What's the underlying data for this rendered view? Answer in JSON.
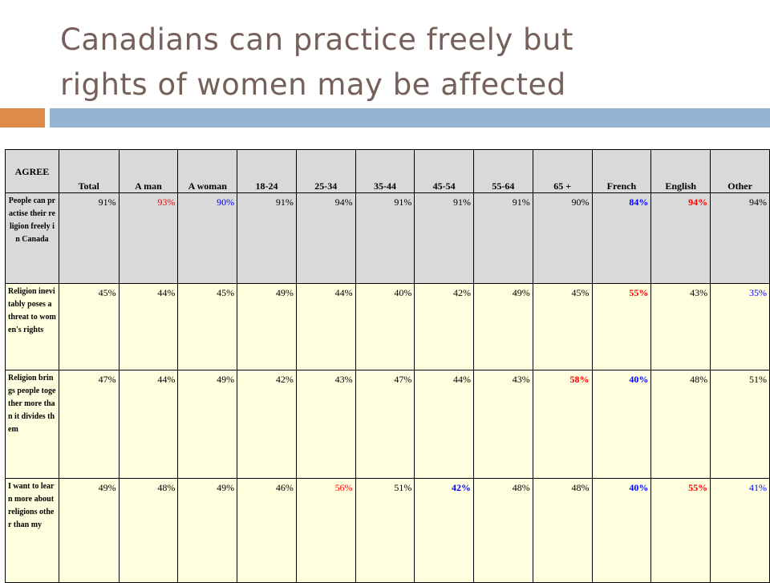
{
  "title": {
    "line1": "Canadians can practice freely but",
    "line2": "rights of women may be affected"
  },
  "colors": {
    "title": "#76605a",
    "accent_orange": "#e08a4a",
    "accent_blue": "#94b4d4",
    "header_bg": "#d9d9d9",
    "row_cream": "#ffffe0",
    "highlight_red": "#ff0000",
    "highlight_blue": "#0000ff"
  },
  "table": {
    "corner": "AGREE",
    "columns": [
      "Total",
      "A man",
      "A woman",
      "18-24",
      "25-34",
      "35-44",
      "45-54",
      "55-64",
      "65 +",
      "French",
      "English",
      "Other"
    ],
    "rows": [
      {
        "label": "People can practise their religion freely in Canada",
        "values": [
          "91%",
          "93%",
          "90%",
          "91%",
          "94%",
          "91%",
          "91%",
          "91%",
          "90%",
          "84%",
          "94%",
          "94%"
        ]
      },
      {
        "label": "Religion inevitably poses a threat to women's rights",
        "values": [
          "45%",
          "44%",
          "45%",
          "49%",
          "44%",
          "40%",
          "42%",
          "49%",
          "45%",
          "55%",
          "43%",
          "35%"
        ]
      },
      {
        "label": "Religion brings people together more than it divides them",
        "values": [
          "47%",
          "44%",
          "49%",
          "42%",
          "43%",
          "47%",
          "44%",
          "43%",
          "58%",
          "40%",
          "48%",
          "51%"
        ]
      },
      {
        "label": "I want to learn more about religions other than my",
        "values": [
          "49%",
          "48%",
          "49%",
          "46%",
          "56%",
          "51%",
          "42%",
          "48%",
          "48%",
          "40%",
          "55%",
          "41%"
        ]
      }
    ]
  }
}
